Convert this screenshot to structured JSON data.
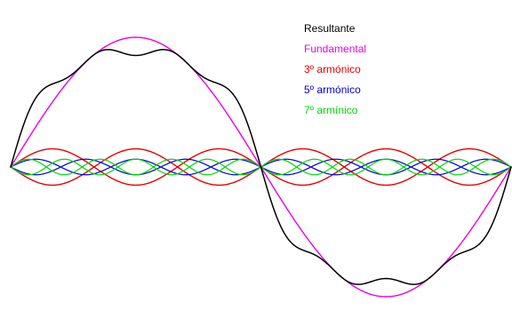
{
  "chart_data": {
    "type": "line",
    "title": "",
    "xlabel": "",
    "ylabel": "",
    "grid": false,
    "legend_position": "top-right",
    "x_range": [
      0,
      1
    ],
    "y_range": [
      -1.3,
      1.3
    ],
    "series": [
      {
        "name": "Resultante",
        "color": "#000000",
        "formula": "sum of Fundamental, 3º armónico, 5º armónico and 7º armínico"
      },
      {
        "name": "Fundamental",
        "color": "#e800e8",
        "harmonic": 1,
        "amplitude": 1.0
      },
      {
        "name": "3º armónico",
        "color": "#e80000",
        "harmonic": 3,
        "amplitude": 0.14
      },
      {
        "name": "5º armónico",
        "color": "#0000d8",
        "harmonic": 5,
        "amplitude": 0.06
      },
      {
        "name": "7º armínico",
        "color": "#00d800",
        "harmonic": 7,
        "amplitude": 0.06
      }
    ]
  }
}
